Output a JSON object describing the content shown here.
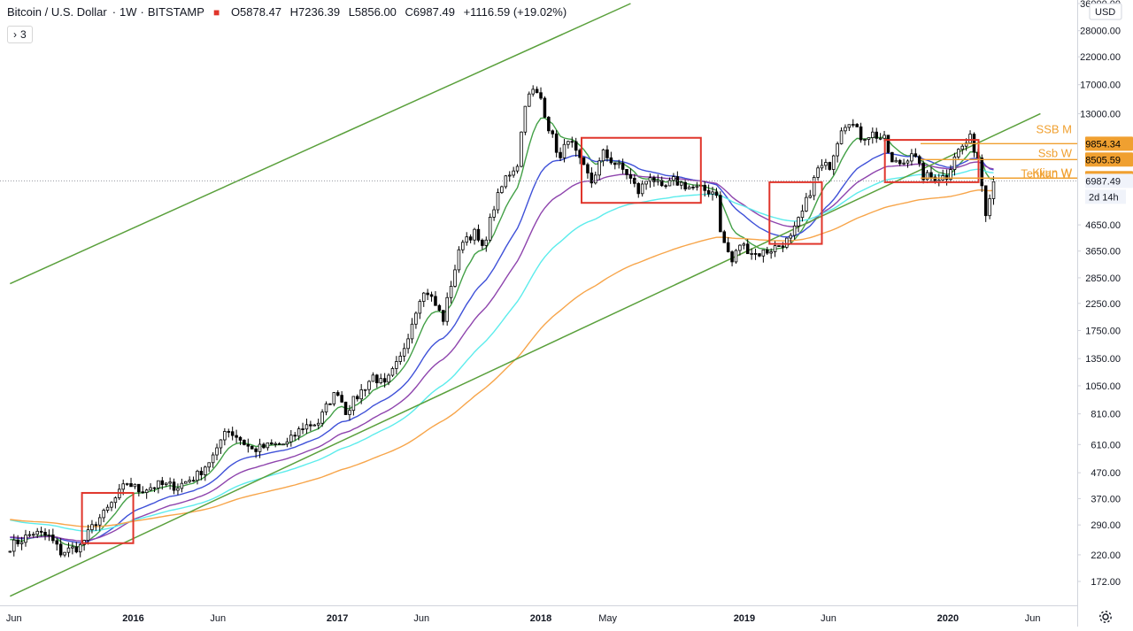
{
  "legend": {
    "symbol": "Bitcoin / U.S. Dollar",
    "interval": "1W",
    "exchange": "BITSTAMP",
    "open": "O5878.47",
    "high": "H7236.39",
    "low": "L5856.00",
    "close": "C6987.49",
    "change": "+1116.59 (+19.02%)",
    "indicators_toggle": "3"
  },
  "axis": {
    "currency": "USD",
    "countdown": "2d 14h"
  },
  "colors": {
    "up_candle": "#ffffff",
    "down_candle": "#000000",
    "channel_line": "#5aa03c",
    "ema_fast": "#43a047",
    "ema_blue": "#3f51d8",
    "ema_purple": "#8e44ad",
    "ema_cyan": "#5cecec",
    "ema_orange": "#f7a54a",
    "highlight_box": "#e0352b",
    "ichimoku_label": "#f0a030"
  },
  "chart_data": {
    "type": "candlestick",
    "title": "Bitcoin / U.S. Dollar",
    "interval": "1W",
    "yscale": "log",
    "ylim": [
      172,
      36000
    ],
    "y_ticks": [
      "36000.00",
      "28000.00",
      "22000.00",
      "17000.00",
      "13000.00",
      "9854.34",
      "8505.59",
      "7165.42",
      "6987.49",
      "4650.00",
      "3650.00",
      "2850.00",
      "2250.00",
      "1750.00",
      "1350.00",
      "1050.00",
      "810.00",
      "610.00",
      "470.00",
      "370.00",
      "290.00",
      "220.00",
      "172.00"
    ],
    "x_ticks": [
      {
        "label": "Jun",
        "date": "2015-06-01"
      },
      {
        "label": "2016",
        "date": "2016-01-01"
      },
      {
        "label": "Jun",
        "date": "2016-06-01"
      },
      {
        "label": "2017",
        "date": "2017-01-01"
      },
      {
        "label": "Jun",
        "date": "2017-06-01"
      },
      {
        "label": "2018",
        "date": "2018-01-01"
      },
      {
        "label": "May",
        "date": "2018-05-01"
      },
      {
        "label": "2019",
        "date": "2019-01-01"
      },
      {
        "label": "Jun",
        "date": "2019-06-01"
      },
      {
        "label": "2020",
        "date": "2020-01-01"
      },
      {
        "label": "Jun",
        "date": "2020-06-01"
      }
    ],
    "close_series": [
      [
        "2015-05-25",
        238
      ],
      [
        "2015-07-06",
        270
      ],
      [
        "2015-08-03",
        260
      ],
      [
        "2015-08-24",
        225
      ],
      [
        "2015-09-28",
        238
      ],
      [
        "2015-10-26",
        300
      ],
      [
        "2015-11-09",
        320
      ],
      [
        "2015-11-30",
        370
      ],
      [
        "2015-12-21",
        430
      ],
      [
        "2016-01-11",
        400
      ],
      [
        "2016-02-15",
        420
      ],
      [
        "2016-03-21",
        415
      ],
      [
        "2016-04-25",
        460
      ],
      [
        "2016-05-30",
        570
      ],
      [
        "2016-06-13",
        710
      ],
      [
        "2016-07-04",
        660
      ],
      [
        "2016-08-01",
        580
      ],
      [
        "2016-09-05",
        605
      ],
      [
        "2016-10-03",
        615
      ],
      [
        "2016-10-31",
        720
      ],
      [
        "2016-11-28",
        750
      ],
      [
        "2016-12-19",
        920
      ],
      [
        "2017-01-02",
        1000
      ],
      [
        "2017-01-16",
        830
      ],
      [
        "2017-02-13",
        1000
      ],
      [
        "2017-03-06",
        1150
      ],
      [
        "2017-03-27",
        1050
      ],
      [
        "2017-04-24",
        1350
      ],
      [
        "2017-05-15",
        1900
      ],
      [
        "2017-05-29",
        2400
      ],
      [
        "2017-06-12",
        2500
      ],
      [
        "2017-07-10",
        1950
      ],
      [
        "2017-07-24",
        2700
      ],
      [
        "2017-08-14",
        4100
      ],
      [
        "2017-09-04",
        4300
      ],
      [
        "2017-09-18",
        3700
      ],
      [
        "2017-10-09",
        5500
      ],
      [
        "2017-10-30",
        7200
      ],
      [
        "2017-11-20",
        8200
      ],
      [
        "2017-12-04",
        14500
      ],
      [
        "2017-12-18",
        16000
      ],
      [
        "2018-01-01",
        15000
      ],
      [
        "2018-01-15",
        11500
      ],
      [
        "2018-02-05",
        8500
      ],
      [
        "2018-02-19",
        10500
      ],
      [
        "2018-03-12",
        8300
      ],
      [
        "2018-04-02",
        6900
      ],
      [
        "2018-04-23",
        9000
      ],
      [
        "2018-05-14",
        8200
      ],
      [
        "2018-06-04",
        7500
      ],
      [
        "2018-06-25",
        6300
      ],
      [
        "2018-07-16",
        7400
      ],
      [
        "2018-08-06",
        6400
      ],
      [
        "2018-08-27",
        7000
      ],
      [
        "2018-09-24",
        6600
      ],
      [
        "2018-10-22",
        6400
      ],
      [
        "2018-11-12",
        6300
      ],
      [
        "2018-11-19",
        4300
      ],
      [
        "2018-12-10",
        3300
      ],
      [
        "2018-12-24",
        3900
      ],
      [
        "2019-01-21",
        3550
      ],
      [
        "2019-02-11",
        3650
      ],
      [
        "2019-03-04",
        3850
      ],
      [
        "2019-03-25",
        4100
      ],
      [
        "2019-04-15",
        5200
      ],
      [
        "2019-05-13",
        7800
      ],
      [
        "2019-06-03",
        8100
      ],
      [
        "2019-06-24",
        11500
      ],
      [
        "2019-07-08",
        12300
      ],
      [
        "2019-07-29",
        10500
      ],
      [
        "2019-08-19",
        10800
      ],
      [
        "2019-09-09",
        10200
      ],
      [
        "2019-09-23",
        8200
      ],
      [
        "2019-10-14",
        8300
      ],
      [
        "2019-10-28",
        9200
      ],
      [
        "2019-11-18",
        7300
      ],
      [
        "2019-12-09",
        7200
      ],
      [
        "2019-12-30",
        7300
      ],
      [
        "2020-01-13",
        8900
      ],
      [
        "2020-02-10",
        10300
      ],
      [
        "2020-02-24",
        8700
      ],
      [
        "2020-03-09",
        5300
      ],
      [
        "2020-03-16",
        6200
      ],
      [
        "2020-03-23",
        6987
      ]
    ],
    "overlays": [
      {
        "type": "line",
        "name": "",
        "color": "ema_fast"
      },
      {
        "type": "line",
        "name": "",
        "color": "ema_blue"
      },
      {
        "type": "line",
        "name": "",
        "color": "ema_purple"
      },
      {
        "type": "line",
        "name": "",
        "color": "ema_cyan"
      },
      {
        "type": "line",
        "name": "",
        "color": "ema_orange"
      }
    ],
    "channel": {
      "lower": [
        [
          "2015-05-25",
          150
        ],
        [
          "2020-06-15",
          13000
        ]
      ],
      "upper": [
        [
          "2015-05-25",
          2700
        ],
        [
          "2018-06-11",
          36000
        ]
      ]
    },
    "highlight_boxes": [
      {
        "from": "2015-10-01",
        "to": "2016-01-01",
        "low": 245,
        "high": 390
      },
      {
        "from": "2018-03-15",
        "to": "2018-10-15",
        "low": 5700,
        "high": 10400
      },
      {
        "from": "2019-02-15",
        "to": "2019-05-20",
        "low": 3900,
        "high": 6900
      },
      {
        "from": "2019-09-10",
        "to": "2020-02-25",
        "low": 6900,
        "high": 10200
      }
    ],
    "level_labels": [
      {
        "text": "SSB M",
        "value": 11200
      },
      {
        "text": "Ssb W",
        "value": 9000
      },
      {
        "text": "Kijun W",
        "value": 7500
      },
      {
        "text": "Tenkan W",
        "value": 7450
      }
    ],
    "price_labels": [
      {
        "text": "9854.34",
        "value": 9854.34,
        "style": "orange"
      },
      {
        "text": "8505.59",
        "value": 8505.59,
        "style": "orange"
      },
      {
        "text": "7165.42",
        "value": 7165.42,
        "style": "orange"
      },
      {
        "text": "6987.49",
        "value": 6987.49,
        "style": "current"
      }
    ]
  }
}
